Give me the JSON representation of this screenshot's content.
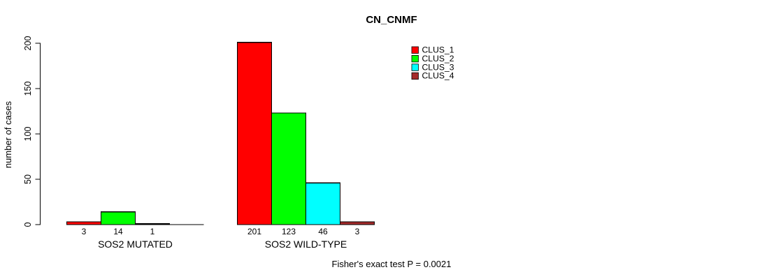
{
  "chart_data": {
    "type": "bar",
    "title": "CN_CNMF",
    "ylabel": "number of cases",
    "annotation": "Fisher's exact test P = 0.0021",
    "ylim": [
      0,
      200
    ],
    "yticks": [
      0,
      50,
      100,
      150,
      200
    ],
    "grid": false,
    "legend_position": "top-right",
    "categories": [
      "SOS2 MUTATED",
      "SOS2 WILD-TYPE"
    ],
    "series": [
      {
        "name": "CLUS_1",
        "color": "#ff0000",
        "values": [
          3,
          201
        ],
        "labels": [
          "3",
          "201"
        ]
      },
      {
        "name": "CLUS_2",
        "color": "#00ff00",
        "values": [
          14,
          123
        ],
        "labels": [
          "14",
          "123"
        ]
      },
      {
        "name": "CLUS_3",
        "color": "#00ffff",
        "values": [
          1,
          46
        ],
        "labels": [
          "1",
          "46"
        ]
      },
      {
        "name": "CLUS_4",
        "color": "#a52a2a",
        "values": [
          0,
          3
        ],
        "labels": [
          "",
          "3"
        ]
      }
    ],
    "colors": {
      "axis": "#000000",
      "text": "#000000",
      "background": "#ffffff"
    }
  }
}
